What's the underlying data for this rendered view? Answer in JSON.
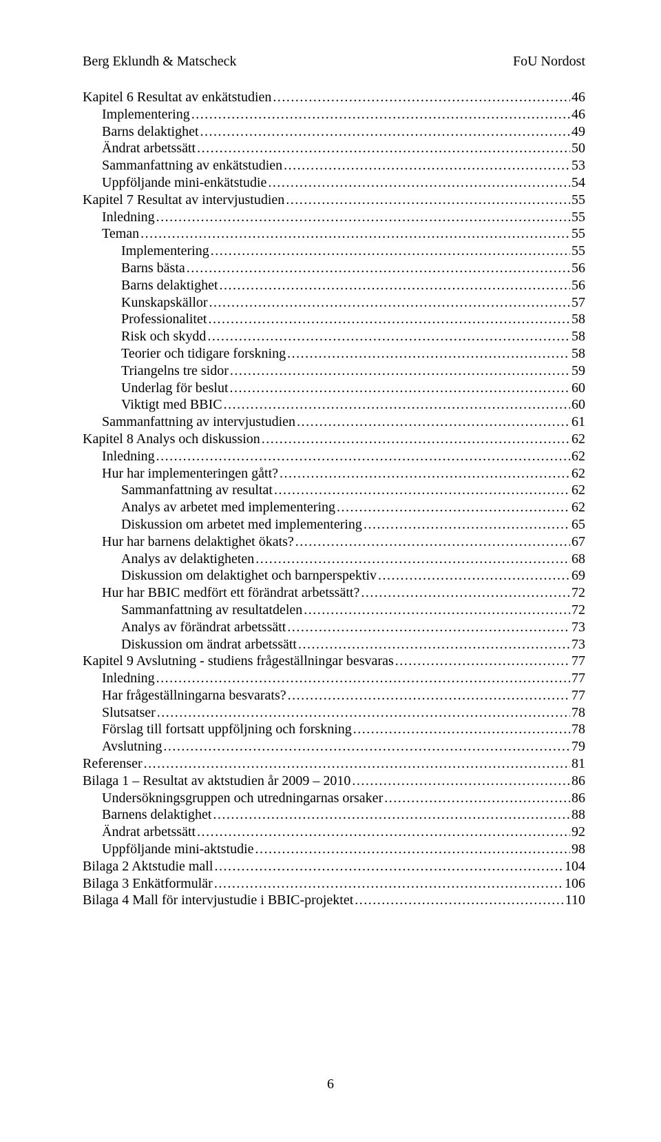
{
  "header": {
    "left": "Berg Eklundh & Matscheck",
    "right": "FoU Nordost"
  },
  "page_number": "6",
  "toc": [
    {
      "indent": 0,
      "label": "Kapitel 6 Resultat av enkätstudien",
      "page": "46"
    },
    {
      "indent": 1,
      "label": "Implementering",
      "page": "46"
    },
    {
      "indent": 1,
      "label": "Barns delaktighet",
      "page": "49"
    },
    {
      "indent": 1,
      "label": "Ändrat arbetssätt",
      "page": "50"
    },
    {
      "indent": 1,
      "label": "Sammanfattning av enkätstudien",
      "page": "53"
    },
    {
      "indent": 1,
      "label": "Uppföljande mini-enkätstudie",
      "page": "54"
    },
    {
      "indent": 0,
      "label": "Kapitel 7 Resultat av intervjustudien",
      "page": "55"
    },
    {
      "indent": 1,
      "label": "Inledning",
      "page": "55"
    },
    {
      "indent": 1,
      "label": "Teman",
      "page": "55"
    },
    {
      "indent": 2,
      "label": "Implementering",
      "page": "55"
    },
    {
      "indent": 2,
      "label": "Barns bästa",
      "page": "56"
    },
    {
      "indent": 2,
      "label": "Barns delaktighet",
      "page": "56"
    },
    {
      "indent": 2,
      "label": "Kunskapskällor",
      "page": "57"
    },
    {
      "indent": 2,
      "label": "Professionalitet",
      "page": "58"
    },
    {
      "indent": 2,
      "label": "Risk och skydd",
      "page": "58"
    },
    {
      "indent": 2,
      "label": "Teorier och tidigare forskning",
      "page": "58"
    },
    {
      "indent": 2,
      "label": "Triangelns tre sidor",
      "page": "59"
    },
    {
      "indent": 2,
      "label": "Underlag för beslut",
      "page": "60"
    },
    {
      "indent": 2,
      "label": "Viktigt med BBIC",
      "page": "60"
    },
    {
      "indent": 1,
      "label": "Sammanfattning av intervjustudien",
      "page": "61"
    },
    {
      "indent": 0,
      "label": "Kapitel 8 Analys och diskussion",
      "page": "62"
    },
    {
      "indent": 1,
      "label": "Inledning",
      "page": "62"
    },
    {
      "indent": 1,
      "label": "Hur har implementeringen gått?",
      "page": "62"
    },
    {
      "indent": 2,
      "label": "Sammanfattning av resultat",
      "page": "62"
    },
    {
      "indent": 2,
      "label": "Analys av arbetet med implementering",
      "page": "62"
    },
    {
      "indent": 2,
      "label": "Diskussion om arbetet med implementering",
      "page": "65"
    },
    {
      "indent": 1,
      "label": "Hur har barnens delaktighet ökats?",
      "page": "67"
    },
    {
      "indent": 2,
      "label": "Analys av delaktigheten",
      "page": "68"
    },
    {
      "indent": 2,
      "label": "Diskussion om delaktighet och barnperspektiv",
      "page": "69"
    },
    {
      "indent": 1,
      "label": "Hur har BBIC medfört ett förändrat arbetssätt?",
      "page": "72"
    },
    {
      "indent": 2,
      "label": "Sammanfattning av resultatdelen",
      "page": "72"
    },
    {
      "indent": 2,
      "label": "Analys av förändrat arbetssätt",
      "page": "73"
    },
    {
      "indent": 2,
      "label": "Diskussion om ändrat arbetssätt",
      "page": "73"
    },
    {
      "indent": 0,
      "label": "Kapitel 9 Avslutning - studiens frågeställningar besvaras",
      "page": "77"
    },
    {
      "indent": 1,
      "label": "Inledning",
      "page": "77"
    },
    {
      "indent": 1,
      "label": "Har frågeställningarna besvarats?",
      "page": "77"
    },
    {
      "indent": 1,
      "label": "Slutsatser",
      "page": "78"
    },
    {
      "indent": 1,
      "label": "Förslag till fortsatt uppföljning och forskning",
      "page": "78"
    },
    {
      "indent": 1,
      "label": "Avslutning",
      "page": "79"
    },
    {
      "indent": 0,
      "label": "Referenser",
      "page": "81"
    },
    {
      "indent": 0,
      "label": "Bilaga 1 – Resultat av aktstudien år 2009 – 2010",
      "page": "86"
    },
    {
      "indent": 1,
      "label": "Undersökningsgruppen och utredningarnas orsaker",
      "page": "86"
    },
    {
      "indent": 1,
      "label": "Barnens delaktighet",
      "page": "88"
    },
    {
      "indent": 1,
      "label": "Ändrat arbetssätt",
      "page": "92"
    },
    {
      "indent": 1,
      "label": "Uppföljande mini-aktstudie",
      "page": "98"
    },
    {
      "indent": 0,
      "label": "Bilaga 2 Aktstudie mall",
      "page": "104"
    },
    {
      "indent": 0,
      "label": "Bilaga 3 Enkätformulär",
      "page": "106"
    },
    {
      "indent": 0,
      "label": "Bilaga 4 Mall för intervjustudie i BBIC-projektet",
      "page": "110"
    }
  ]
}
